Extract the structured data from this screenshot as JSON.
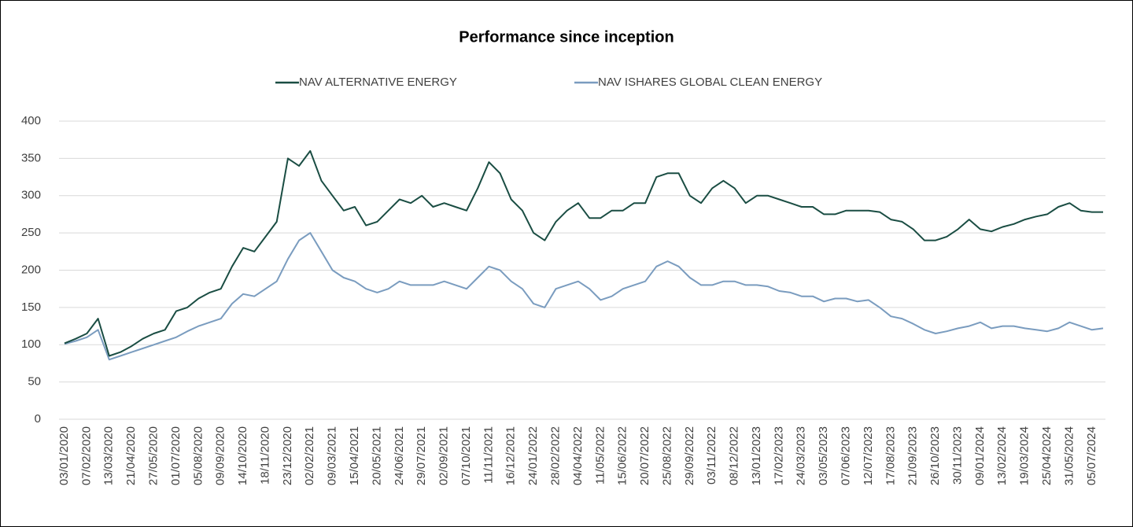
{
  "chart_data": {
    "type": "line",
    "title": "Performance since inception",
    "categories": [
      "03/01/2020",
      null,
      "07/02/2020",
      null,
      "13/03/2020",
      null,
      "21/04/2020",
      null,
      "27/05/2020",
      null,
      "01/07/2020",
      null,
      "05/08/2020",
      null,
      "09/09/2020",
      null,
      "14/10/2020",
      null,
      "18/11/2020",
      null,
      "23/12/2020",
      null,
      "02/02/2021",
      null,
      "09/03/2021",
      null,
      "15/04/2021",
      null,
      "20/05/2021",
      null,
      "24/06/2021",
      null,
      "29/07/2021",
      null,
      "02/09/2021",
      null,
      "07/10/2021",
      null,
      "11/11/2021",
      null,
      "16/12/2021",
      null,
      "24/01/2022",
      null,
      "28/02/2022",
      null,
      "04/04/2022",
      null,
      "11/05/2022",
      null,
      "15/06/2022",
      null,
      "20/07/2022",
      null,
      "25/08/2022",
      null,
      "29/09/2022",
      null,
      "03/11/2022",
      null,
      "08/12/2022",
      null,
      "13/01/2023",
      null,
      "17/02/2023",
      null,
      "24/03/2023",
      null,
      "03/05/2023",
      null,
      "07/06/2023",
      null,
      "12/07/2023",
      null,
      "17/08/2023",
      null,
      "21/09/2023",
      null,
      "26/10/2023",
      null,
      "30/11/2023",
      null,
      "09/01/2024",
      null,
      "13/02/2024",
      null,
      "19/03/2024",
      null,
      "25/04/2024",
      null,
      "31/05/2024",
      null,
      "05/07/2024",
      null
    ],
    "series": [
      {
        "name": "NAV ALTERNATIVE ENERGY",
        "color": "#1a4d43",
        "values": [
          102,
          108,
          115,
          135,
          85,
          90,
          98,
          108,
          115,
          120,
          145,
          150,
          162,
          170,
          175,
          205,
          230,
          225,
          245,
          265,
          350,
          340,
          360,
          320,
          300,
          280,
          285,
          260,
          265,
          280,
          295,
          290,
          300,
          285,
          290,
          285,
          280,
          310,
          345,
          330,
          295,
          280,
          250,
          240,
          265,
          280,
          290,
          270,
          270,
          280,
          280,
          290,
          290,
          325,
          330,
          330,
          300,
          290,
          310,
          320,
          310,
          290,
          300,
          300,
          295,
          290,
          285,
          285,
          275,
          275,
          280,
          280,
          280,
          278,
          268,
          265,
          255,
          240,
          240,
          245,
          255,
          268,
          255,
          252,
          258,
          262,
          268,
          272,
          275,
          285,
          290,
          280,
          278,
          278
        ]
      },
      {
        "name": "NAV ISHARES GLOBAL CLEAN ENERGY",
        "color": "#7a9cbf",
        "values": [
          101,
          105,
          110,
          120,
          80,
          85,
          90,
          95,
          100,
          105,
          110,
          118,
          125,
          130,
          135,
          155,
          168,
          165,
          175,
          185,
          215,
          240,
          250,
          225,
          200,
          190,
          185,
          175,
          170,
          175,
          185,
          180,
          180,
          180,
          185,
          180,
          175,
          190,
          205,
          200,
          185,
          175,
          155,
          150,
          175,
          180,
          185,
          175,
          160,
          165,
          175,
          180,
          185,
          205,
          212,
          205,
          190,
          180,
          180,
          185,
          185,
          180,
          180,
          178,
          172,
          170,
          165,
          165,
          158,
          162,
          162,
          158,
          160,
          150,
          138,
          135,
          128,
          120,
          115,
          118,
          122,
          125,
          130,
          122,
          125,
          125,
          122,
          120,
          118,
          122,
          130,
          125,
          120,
          122
        ]
      }
    ],
    "ylim": [
      0,
      400
    ],
    "yticks": [
      0,
      50,
      100,
      150,
      200,
      250,
      300,
      350,
      400
    ],
    "grid": true,
    "legend": "top"
  }
}
